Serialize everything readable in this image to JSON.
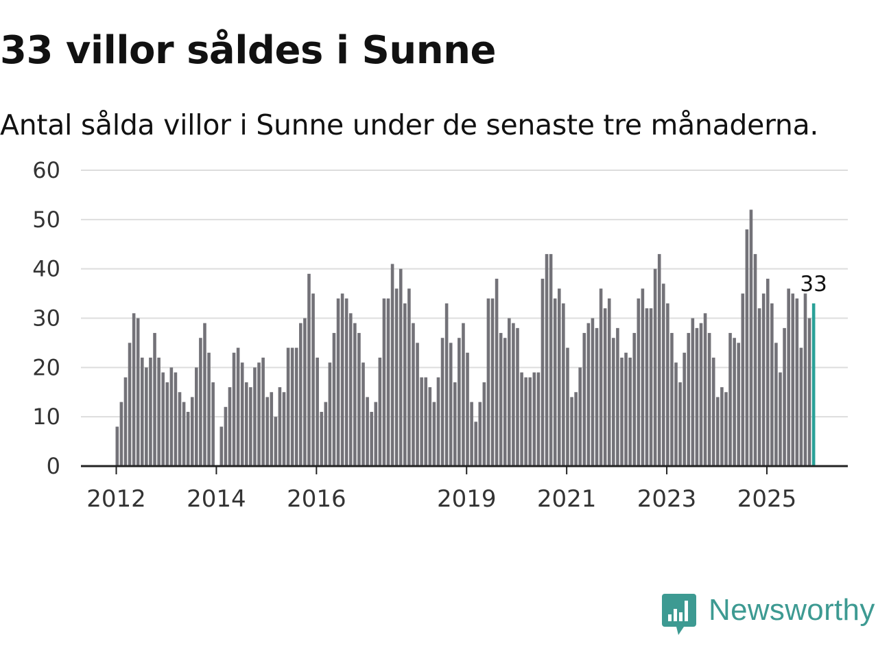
{
  "header": {
    "title": "33 villor såldes i Sunne",
    "subtitle": "Antal sålda villor i Sunne under de senaste tre månaderna."
  },
  "brand": {
    "name": "Newsworthy",
    "color": "#3d9a92"
  },
  "colors": {
    "bar": "#737278",
    "highlight": "#2aa198",
    "grid": "#dddddd",
    "axis": "#222222"
  },
  "chart_data": {
    "type": "bar",
    "title": "33 villor såldes i Sunne",
    "subtitle": "Antal sålda villor i Sunne under de senaste tre månaderna.",
    "xlabel": "",
    "ylabel": "",
    "ylim": [
      0,
      60
    ],
    "yticks": [
      0,
      10,
      20,
      30,
      40,
      50,
      60
    ],
    "grid": true,
    "x_start": {
      "year": 2012,
      "month": 1
    },
    "xtick_labels": [
      "2012",
      "2014",
      "2016",
      "2019",
      "2021",
      "2023",
      "2025"
    ],
    "xtick_index": [
      0,
      24,
      48,
      84,
      108,
      132,
      156
    ],
    "highlight_label": "33",
    "values": [
      8,
      13,
      18,
      25,
      31,
      30,
      22,
      20,
      22,
      27,
      22,
      19,
      17,
      20,
      19,
      15,
      13,
      11,
      14,
      20,
      26,
      29,
      23,
      17,
      0,
      8,
      12,
      16,
      23,
      24,
      21,
      17,
      16,
      20,
      21,
      22,
      14,
      15,
      10,
      16,
      15,
      24,
      24,
      24,
      29,
      30,
      39,
      35,
      22,
      11,
      13,
      21,
      27,
      34,
      35,
      34,
      31,
      29,
      27,
      21,
      14,
      11,
      13,
      22,
      34,
      34,
      41,
      36,
      40,
      33,
      36,
      29,
      25,
      18,
      18,
      16,
      13,
      18,
      26,
      33,
      25,
      17,
      26,
      29,
      23,
      13,
      9,
      13,
      17,
      34,
      34,
      38,
      27,
      26,
      30,
      29,
      28,
      19,
      18,
      18,
      19,
      19,
      38,
      43,
      43,
      34,
      36,
      33,
      24,
      14,
      15,
      20,
      27,
      29,
      30,
      28,
      36,
      32,
      34,
      26,
      28,
      22,
      23,
      22,
      27,
      34,
      36,
      32,
      32,
      40,
      43,
      37,
      33,
      27,
      21,
      17,
      23,
      27,
      30,
      28,
      29,
      31,
      27,
      22,
      14,
      16,
      15,
      27,
      26,
      25,
      35,
      48,
      52,
      43,
      32,
      35,
      38,
      33,
      25,
      19,
      28,
      36,
      35,
      34,
      24,
      35,
      30,
      33
    ]
  }
}
